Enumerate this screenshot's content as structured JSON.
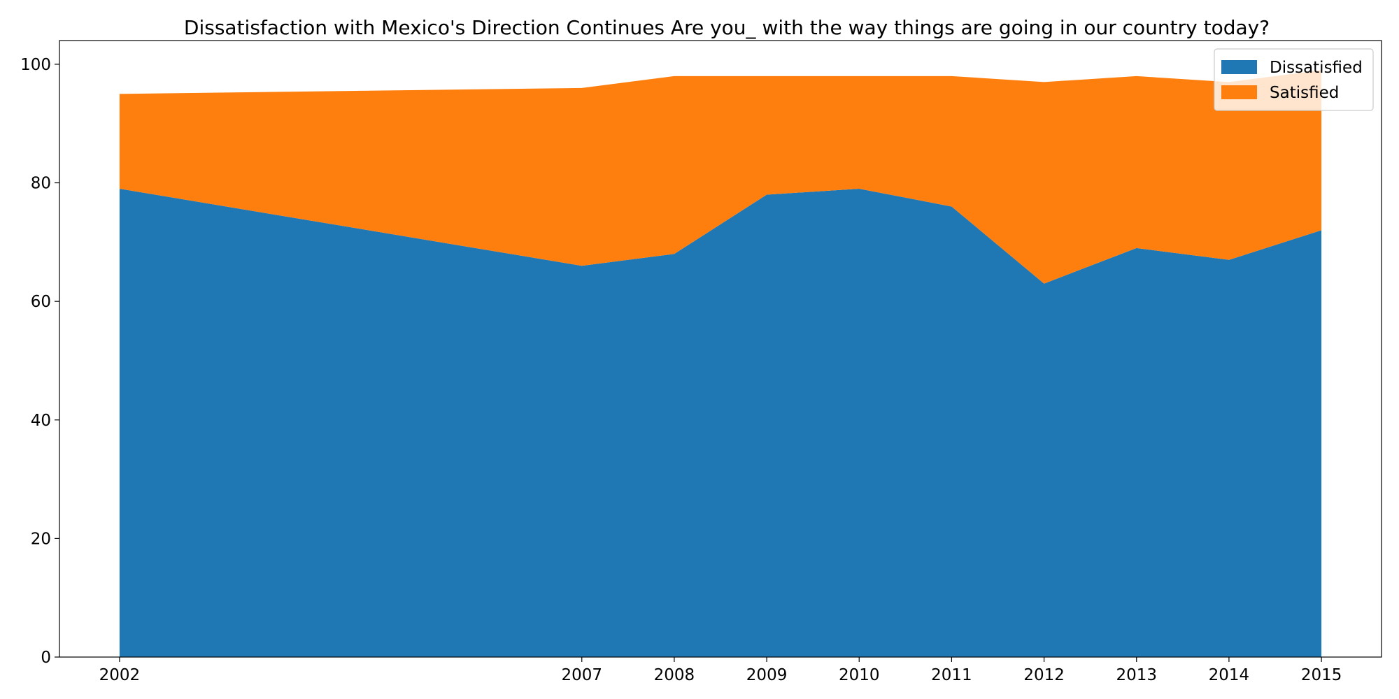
{
  "chart_data": {
    "type": "area",
    "stacked": true,
    "title": "Dissatisfaction with Mexico's Direction Continues Are you_ with the way things are going in our country today?",
    "xlabel": "",
    "ylabel": "",
    "x": [
      2002,
      2007,
      2008,
      2009,
      2010,
      2011,
      2012,
      2013,
      2014,
      2015
    ],
    "xlim": [
      2001.35,
      2015.65
    ],
    "ylim": [
      0,
      104
    ],
    "yticks": [
      0,
      20,
      40,
      60,
      80,
      100
    ],
    "grid": false,
    "legend_position": "top-right",
    "series": [
      {
        "name": "Dissatisfied",
        "color": "#1f77b4",
        "values": [
          79,
          66,
          68,
          78,
          79,
          76,
          63,
          69,
          67,
          72
        ]
      },
      {
        "name": "Satisfied",
        "color": "#ff7f0e",
        "values": [
          16,
          30,
          30,
          20,
          19,
          22,
          34,
          29,
          30,
          27
        ]
      }
    ]
  }
}
